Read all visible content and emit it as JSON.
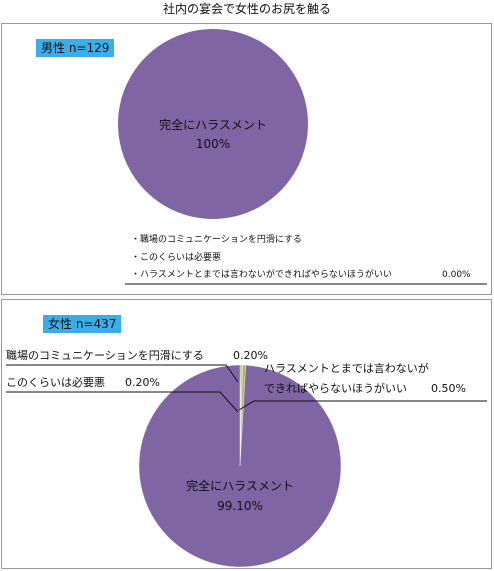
{
  "title": "社内の宴会で女性のお尻を触る",
  "colors": {
    "harassment": "#7f65a3",
    "minor": "#a9b85c",
    "badge": "#39aee8"
  },
  "chart_data": [
    {
      "type": "pie",
      "group_label": "男性 n=129",
      "categories": [
        "完全にハラスメント",
        "職場のコミュニケーションを円滑にする",
        "このくらいは必要悪",
        "ハラスメントとまでは言わないができればやらないほうがいい"
      ],
      "values": [
        100,
        0,
        0,
        0
      ],
      "slice_label": "完全にハラスメント",
      "slice_value": "100%",
      "legend_items": [
        {
          "label": "・職場のコミュニケーションを円滑にする",
          "value": ""
        },
        {
          "label": "・このくらいは必要悪",
          "value": ""
        },
        {
          "label": "・ハラスメントとまでは言わないができればやらないほうがいい",
          "value": "0.00%"
        }
      ]
    },
    {
      "type": "pie",
      "group_label": "女性 n=437",
      "categories": [
        "完全にハラスメント",
        "職場のコミュニケーションを円滑にする",
        "このくらいは必要悪",
        "ハラスメントとまでは言わないができればやらないほうがいい"
      ],
      "values": [
        99.1,
        0.2,
        0.2,
        0.5
      ],
      "slice_label": "完全にハラスメント",
      "slice_value": "99.10%",
      "callouts": [
        {
          "label": "職場のコミュニケーションを円滑にする",
          "value": "0.20%"
        },
        {
          "label": "このくらいは必要悪",
          "value": "0.20%"
        },
        {
          "label_line1": "ハラスメントとまでは言わないが",
          "label_line2": "できればやらないほうがいい",
          "value": "0.50%"
        }
      ]
    }
  ]
}
